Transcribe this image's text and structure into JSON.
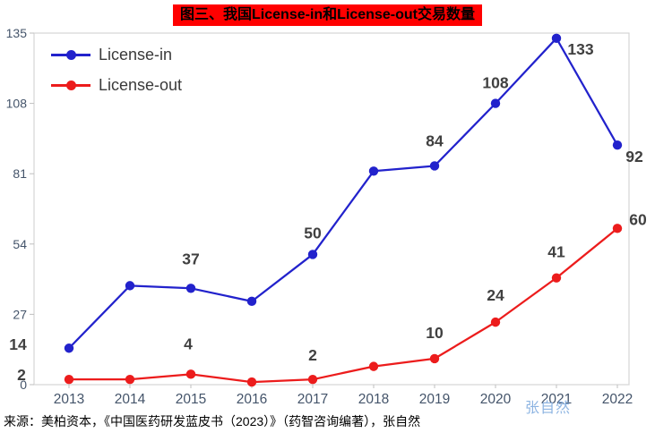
{
  "title": "图三、我国License-in和License-out交易数量",
  "source_text": "来源：美柏资本，《中国医药研发蓝皮书（2023）》（药智咨询编著），张自然",
  "watermark": "张自然",
  "colors": {
    "title_bg": "#ff0000",
    "license_in": "#2222cc",
    "license_out": "#ec1c1c",
    "label": "#404040",
    "axis": "#44546a",
    "plot_border": "#d6d6d6",
    "tick": "#bfbfbf",
    "watermark": "#8db4e2"
  },
  "chart_data": {
    "type": "line",
    "title": "图三、我国License-in和License-out交易数量",
    "xlabel": "",
    "ylabel": "",
    "categories": [
      "2013",
      "2014",
      "2015",
      "2016",
      "2017",
      "2018",
      "2019",
      "2020",
      "2021",
      "2022"
    ],
    "ylim": [
      0,
      135
    ],
    "yticks": [
      0,
      27,
      54,
      81,
      108,
      135
    ],
    "grid": false,
    "legend_position": "top-left",
    "series": [
      {
        "name": "License-in",
        "color_key": "license_in",
        "values": [
          14,
          38,
          37,
          32,
          50,
          82,
          84,
          108,
          133,
          92
        ],
        "labels": [
          {
            "text": "14",
            "dx": -57,
            "dy": 2
          },
          null,
          {
            "text": "37",
            "dx": 0,
            "dy": -27
          },
          null,
          {
            "text": "50",
            "dx": 0,
            "dy": -18
          },
          null,
          {
            "text": "84",
            "dx": 0,
            "dy": -22
          },
          {
            "text": "108",
            "dx": 0,
            "dy": -17
          },
          {
            "text": "133",
            "dx": 27,
            "dy": 18
          },
          {
            "text": "92",
            "dx": 19,
            "dy": 19
          }
        ]
      },
      {
        "name": "License-out",
        "color_key": "license_out",
        "values": [
          2,
          2,
          4,
          1,
          2,
          7,
          10,
          24,
          41,
          60
        ],
        "labels": [
          {
            "text": "2",
            "dx": -53,
            "dy": 1
          },
          null,
          {
            "text": "4",
            "dx": -3,
            "dy": -28
          },
          null,
          {
            "text": "2",
            "dx": 0,
            "dy": -21
          },
          null,
          {
            "text": "10",
            "dx": 0,
            "dy": -23
          },
          {
            "text": "24",
            "dx": 0,
            "dy": -24
          },
          {
            "text": "41",
            "dx": 0,
            "dy": -23
          },
          {
            "text": "60",
            "dx": 23,
            "dy": -4
          }
        ]
      }
    ]
  }
}
